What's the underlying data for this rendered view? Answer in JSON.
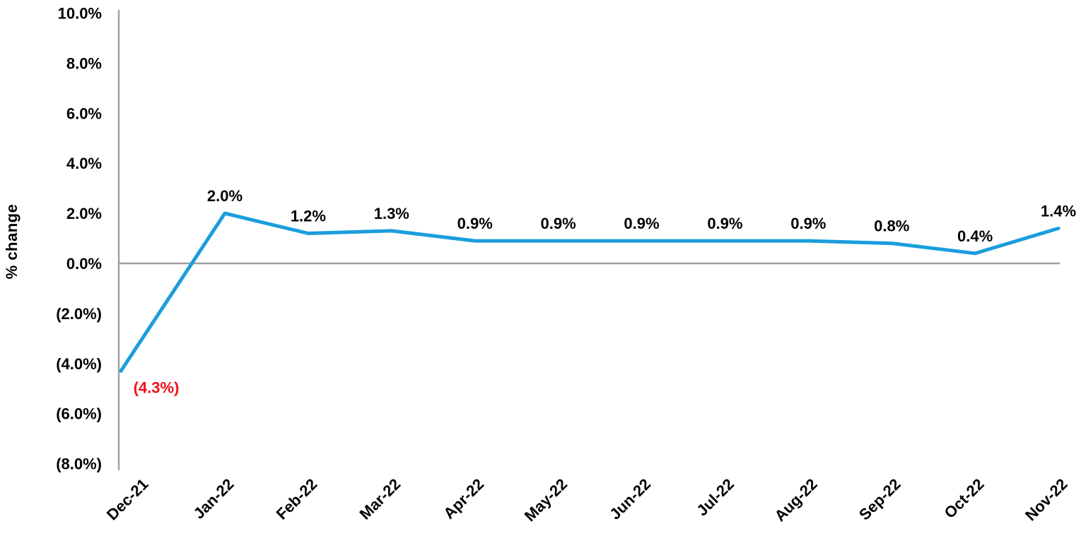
{
  "chart_data": {
    "type": "line",
    "title": "",
    "ylabel": "% change",
    "xlabel": "",
    "grid": false,
    "legend": "none",
    "ylim": [
      -8,
      10
    ],
    "categories": [
      "Dec-21",
      "Jan-22",
      "Feb-22",
      "Mar-22",
      "Apr-22",
      "May-22",
      "Jun-22",
      "Jul-22",
      "Aug-22",
      "Sep-22",
      "Oct-22",
      "Nov-22"
    ],
    "series": [
      {
        "name": "% change",
        "values": [
          -4.3,
          2.0,
          1.2,
          1.3,
          0.9,
          0.9,
          0.9,
          0.9,
          0.9,
          0.8,
          0.4,
          1.4
        ]
      }
    ],
    "data_labels": [
      {
        "text": "(4.3%)",
        "color": "#F00F19",
        "placement": "below-right"
      },
      {
        "text": "2.0%",
        "color": "#000000",
        "placement": "above"
      },
      {
        "text": "1.2%",
        "color": "#000000",
        "placement": "above"
      },
      {
        "text": "1.3%",
        "color": "#000000",
        "placement": "above"
      },
      {
        "text": "0.9%",
        "color": "#000000",
        "placement": "above"
      },
      {
        "text": "0.9%",
        "color": "#000000",
        "placement": "above"
      },
      {
        "text": "0.9%",
        "color": "#000000",
        "placement": "above"
      },
      {
        "text": "0.9%",
        "color": "#000000",
        "placement": "above"
      },
      {
        "text": "0.9%",
        "color": "#000000",
        "placement": "above"
      },
      {
        "text": "0.8%",
        "color": "#000000",
        "placement": "above"
      },
      {
        "text": "0.4%",
        "color": "#000000",
        "placement": "above"
      },
      {
        "text": "1.4%",
        "color": "#000000",
        "placement": "above"
      }
    ],
    "yticks": [
      {
        "value": 10,
        "label": "10.0%"
      },
      {
        "value": 8,
        "label": "8.0%"
      },
      {
        "value": 6,
        "label": "6.0%"
      },
      {
        "value": 4,
        "label": "4.0%"
      },
      {
        "value": 2,
        "label": "2.0%"
      },
      {
        "value": 0,
        "label": "0.0%"
      },
      {
        "value": -2,
        "label": "(2.0%)"
      },
      {
        "value": -4,
        "label": "(4.0%)"
      },
      {
        "value": -6,
        "label": "(6.0%)"
      },
      {
        "value": -8,
        "label": "(8.0%)"
      }
    ],
    "colors": {
      "line": "#1B9DDD",
      "axis": "#A0A0A0",
      "tick_text": "#000000",
      "negative_label": "#F00F19"
    }
  }
}
